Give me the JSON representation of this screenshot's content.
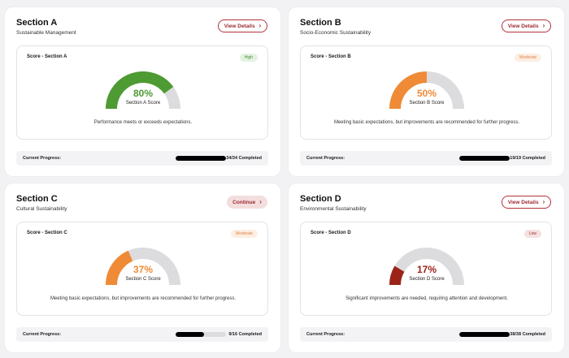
{
  "colors": {
    "track": "#dcdcdf",
    "accent": "#9b2a31"
  },
  "cards": [
    {
      "title": "Section A",
      "subtitle": "Sustainable Management",
      "button": {
        "label": "View Details",
        "style": "outline"
      },
      "score_title": "Score - Section A",
      "badge": {
        "label": "High",
        "bg": "#e3f3df",
        "fg": "#4a8a3c"
      },
      "percent": 80,
      "percent_label": "80%",
      "color": "#4e9a33",
      "gauge_label": "Section A Score",
      "description": "Performance meets or exceeds expectations.",
      "progress_label": "Current Progress:",
      "progress_count": "34/34 Completed",
      "progress_fraction": 1.0
    },
    {
      "title": "Section B",
      "subtitle": "Socio-Economic Sustainability",
      "button": {
        "label": "View Details",
        "style": "outline"
      },
      "score_title": "Score - Section B",
      "badge": {
        "label": "Moderate",
        "bg": "#fdeee2",
        "fg": "#e0854a"
      },
      "percent": 50,
      "percent_label": "50%",
      "color": "#ef8a36",
      "gauge_label": "Section B Score",
      "description": "Meeting basic expectations, but improvements are recommended for further progress.",
      "progress_label": "Current Progress:",
      "progress_count": "19/19 Completed",
      "progress_fraction": 1.0
    },
    {
      "title": "Section C",
      "subtitle": "Cultural Sustainability",
      "button": {
        "label": "Continue",
        "style": "filled"
      },
      "score_title": "Score - Section C",
      "badge": {
        "label": "Moderate",
        "bg": "#fdeee2",
        "fg": "#e0854a"
      },
      "percent": 37,
      "percent_label": "37%",
      "color": "#ef8a36",
      "gauge_label": "Section C Score",
      "description": "Meeting basic expectations, but improvements are recommended for further progress.",
      "progress_label": "Current Progress:",
      "progress_count": "9/16 Completed",
      "progress_fraction": 0.5625
    },
    {
      "title": "Section D",
      "subtitle": "Environmental Sustainability",
      "button": {
        "label": "View Details",
        "style": "outline"
      },
      "score_title": "Score - Section D",
      "badge": {
        "label": "Low",
        "bg": "#f6e0e0",
        "fg": "#9b2a31"
      },
      "percent": 17,
      "percent_label": "17%",
      "color": "#9b2318",
      "gauge_label": "Section D Score",
      "description": "Significant improvements are needed, requiring attention and development.",
      "progress_label": "Current Progress:",
      "progress_count": "38/38 Completed",
      "progress_fraction": 1.0
    }
  ]
}
